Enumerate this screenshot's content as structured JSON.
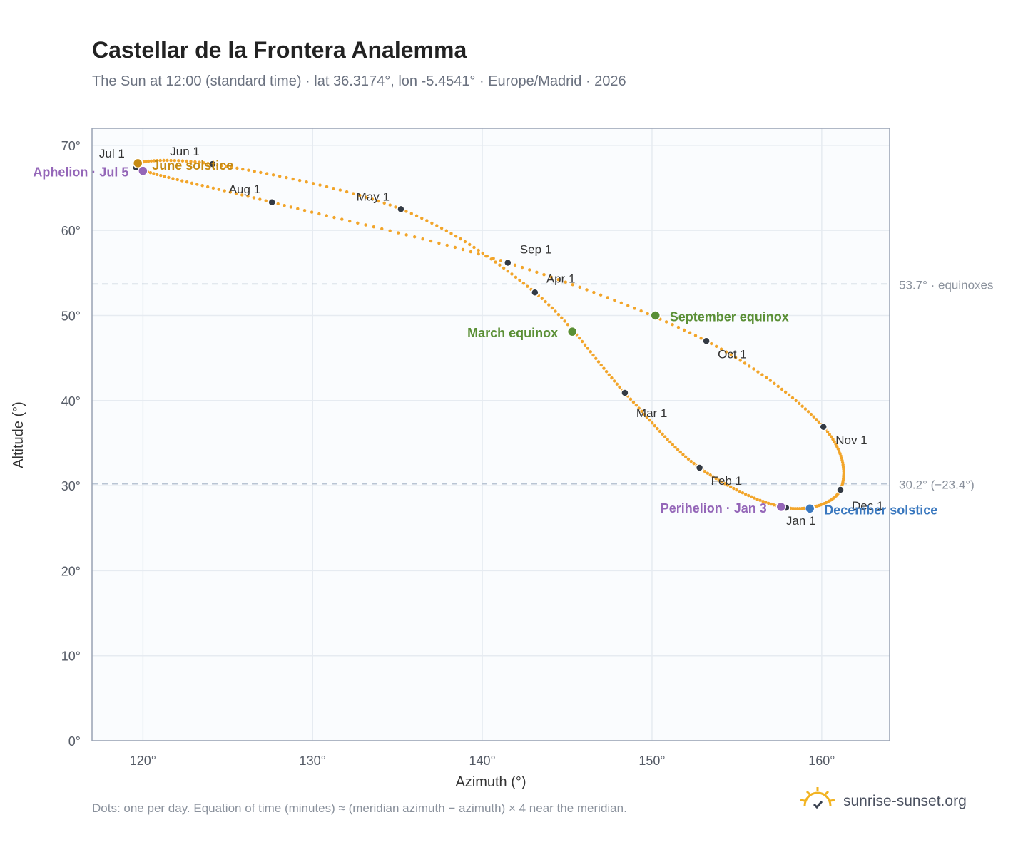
{
  "header": {
    "title": "Castellar de la Frontera Analemma",
    "subtitle": "The Sun at 12:00 (standard time) · lat 36.3174°, lon -5.4541° · Europe/Madrid · 2026"
  },
  "footer": {
    "note": "Dots: one per day. Equation of time (minutes) ≈ (meridian azimuth − azimuth) × 4 near the meridian.",
    "brand": "sunrise-sunset.org",
    "brand_icon": "sun-icon"
  },
  "colors": {
    "curve": "#f2a52a",
    "month_dot": "#333a44",
    "june_solstice": "#c68a12",
    "december_solstice": "#3a78bf",
    "equinox": "#5a8f35",
    "apsis": "#9466b8",
    "reference_line": "#b9c5d4",
    "plot_bg": "#fafcfe",
    "grid": "#e6ebf1",
    "frame": "#98a2b3"
  },
  "chart_data": {
    "type": "scatter",
    "xlabel": "Azimuth (°)",
    "ylabel": "Altitude (°)",
    "xlim": [
      117,
      164
    ],
    "ylim": [
      0,
      72
    ],
    "x_ticks": [
      {
        "value": 120,
        "label": "120°"
      },
      {
        "value": 130,
        "label": "130°"
      },
      {
        "value": 140,
        "label": "140°"
      },
      {
        "value": 150,
        "label": "150°"
      },
      {
        "value": 160,
        "label": "160°"
      }
    ],
    "y_ticks": [
      {
        "value": 0,
        "label": "0°"
      },
      {
        "value": 10,
        "label": "10°"
      },
      {
        "value": 20,
        "label": "20°"
      },
      {
        "value": 30,
        "label": "30°"
      },
      {
        "value": 40,
        "label": "40°"
      },
      {
        "value": 50,
        "label": "50°"
      },
      {
        "value": 60,
        "label": "60°"
      },
      {
        "value": 70,
        "label": "70°"
      }
    ],
    "grid": true,
    "reference_lines": [
      {
        "y": 53.7,
        "label": "53.7° · equinoxes"
      },
      {
        "y": 30.2,
        "label": "30.2° (−23.4°)"
      }
    ],
    "month_points": [
      {
        "date": "2026-01-01",
        "label": "Jan 1",
        "azimuth": 157.9,
        "altitude": 27.4
      },
      {
        "date": "2026-02-01",
        "label": "Feb 1",
        "azimuth": 152.8,
        "altitude": 32.1
      },
      {
        "date": "2026-03-01",
        "label": "Mar 1",
        "azimuth": 148.4,
        "altitude": 40.9
      },
      {
        "date": "2026-04-01",
        "label": "Apr 1",
        "azimuth": 143.1,
        "altitude": 52.7
      },
      {
        "date": "2026-05-01",
        "label": "May 1",
        "azimuth": 135.2,
        "altitude": 62.5
      },
      {
        "date": "2026-06-01",
        "label": "Jun 1",
        "azimuth": 124.1,
        "altitude": 67.8
      },
      {
        "date": "2026-07-01",
        "label": "Jul 1",
        "azimuth": 119.6,
        "altitude": 67.4
      },
      {
        "date": "2026-08-01",
        "label": "Aug 1",
        "azimuth": 127.6,
        "altitude": 63.3
      },
      {
        "date": "2026-09-01",
        "label": "Sep 1",
        "azimuth": 141.5,
        "altitude": 56.2
      },
      {
        "date": "2026-10-01",
        "label": "Oct 1",
        "azimuth": 153.2,
        "altitude": 47.0
      },
      {
        "date": "2026-11-01",
        "label": "Nov 1",
        "azimuth": 160.1,
        "altitude": 36.9
      },
      {
        "date": "2026-12-01",
        "label": "Dec 1",
        "azimuth": 161.1,
        "altitude": 29.5
      }
    ],
    "events": [
      {
        "key": "june_solstice",
        "label": "June solstice",
        "azimuth": 119.7,
        "altitude": 67.9
      },
      {
        "key": "aphelion",
        "label": "Aphelion · Jul 5",
        "azimuth": 120.0,
        "altitude": 67.0
      },
      {
        "key": "march_equinox",
        "label": "March equinox",
        "azimuth": 145.3,
        "altitude": 48.1
      },
      {
        "key": "september_equinox",
        "label": "September equinox",
        "azimuth": 150.2,
        "altitude": 50.0
      },
      {
        "key": "perihelion",
        "label": "Perihelion · Jan 3",
        "azimuth": 157.6,
        "altitude": 27.5
      },
      {
        "key": "december_solstice",
        "label": "December solstice",
        "azimuth": 159.3,
        "altitude": 27.3
      }
    ]
  }
}
